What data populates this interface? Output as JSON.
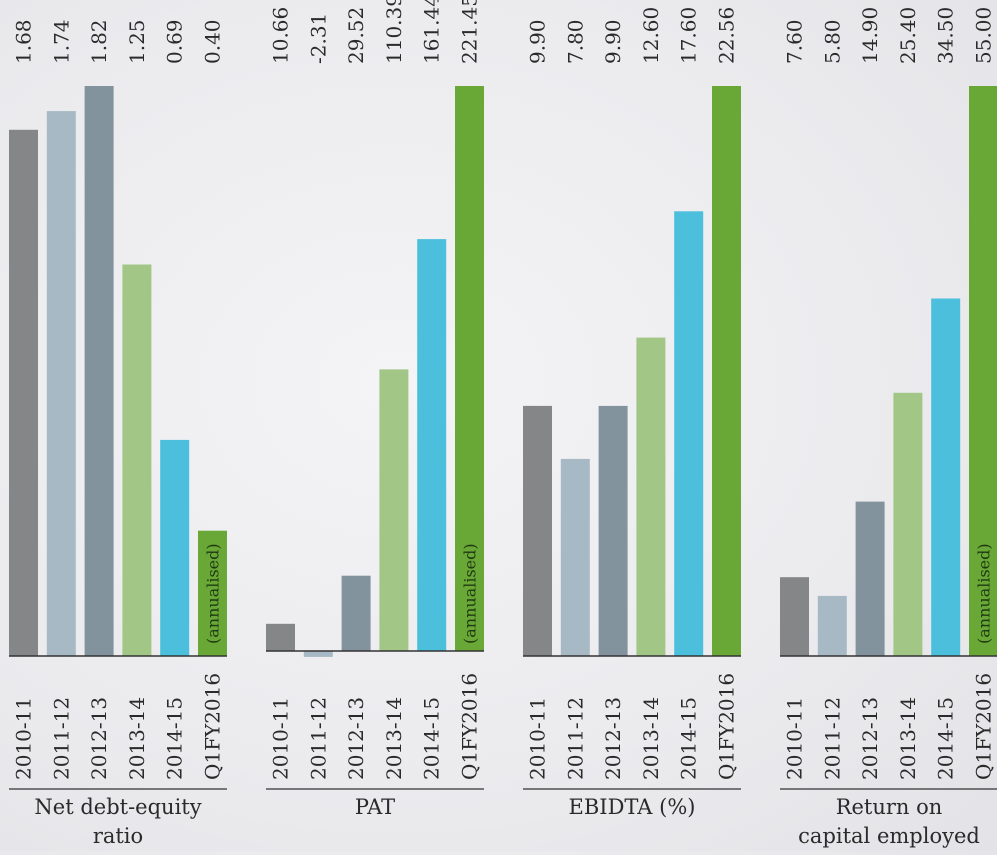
{
  "chart_data": [
    {
      "type": "bar",
      "title": "Net debt-equity ratio",
      "categories": [
        "2010-11",
        "2011-12",
        "2012-13",
        "2013-14",
        "2014-15",
        "Q1FY2016"
      ],
      "values": [
        1.68,
        1.74,
        1.82,
        1.25,
        0.69,
        0.4
      ],
      "value_labels": [
        "1.68",
        "1.74",
        "1.82",
        "1.25",
        "0.69",
        "0.40"
      ],
      "bar_note": "(annualised)",
      "bar_note_index": 5,
      "ylim": [
        0,
        1.82
      ]
    },
    {
      "type": "bar",
      "title": "PAT",
      "categories": [
        "2010-11",
        "2011-12",
        "2012-13",
        "2013-14",
        "2014-15",
        "Q1FY2016"
      ],
      "values": [
        10.66,
        -2.31,
        29.52,
        110.39,
        161.44,
        221.45
      ],
      "value_labels": [
        "10.66",
        "-2.31",
        "29.52",
        "110.39",
        "161.44",
        "221.45"
      ],
      "bar_note": "(annualised)",
      "bar_note_index": 5,
      "ylim": [
        -2.31,
        221.45
      ]
    },
    {
      "type": "bar",
      "title": "EBIDTA (%)",
      "categories": [
        "2010-11",
        "2011-12",
        "2012-13",
        "2013-14",
        "2014-15",
        "Q1FY2016"
      ],
      "values": [
        9.9,
        7.8,
        9.9,
        12.6,
        17.6,
        22.56
      ],
      "value_labels": [
        "9.90",
        "7.80",
        "9.90",
        "12.60",
        "17.60",
        "22.56"
      ],
      "bar_note": "",
      "bar_note_index": 5,
      "ylim": [
        0,
        22.56
      ]
    },
    {
      "type": "bar",
      "title": "Return on capital employed",
      "categories": [
        "2010-11",
        "2011-12",
        "2012-13",
        "2013-14",
        "2014-15",
        "Q1FY2016"
      ],
      "values": [
        7.6,
        5.8,
        14.9,
        25.4,
        34.5,
        55.0
      ],
      "value_labels": [
        "7.60",
        "5.80",
        "14.90",
        "25.40",
        "34.50",
        "55.00"
      ],
      "bar_note": "(annualised)",
      "bar_note_index": 5,
      "ylim": [
        0,
        55.0
      ]
    }
  ],
  "colors": [
    "#858688",
    "#a7b9c5",
    "#83939e",
    "#a2c686",
    "#4bbfdb",
    "#69a837"
  ],
  "text_color": "#2a2a2a",
  "note_color": "#1f3a10"
}
